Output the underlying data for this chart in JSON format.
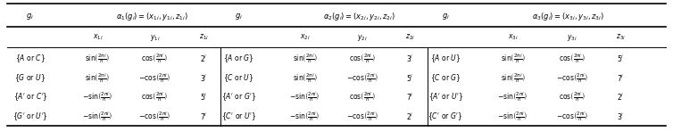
{
  "figsize": [
    7.54,
    1.48
  ],
  "dpi": 100,
  "header_row": [
    "g_i",
    "\\alpha_1(g_i) = (x_{1i}, y_{1i}, z_{1i})",
    "g_i",
    "\\alpha_2(g_i) = (x_{2i}, y_{2i}, z_{2i})",
    "g_i",
    "\\alpha_3(g_i) = (x_{3i}, y_{3i}, z_{3i})"
  ],
  "subheader": [
    "",
    "x_{1i}",
    "y_{1i}",
    "z_{1i}",
    "",
    "x_{2i}",
    "y_{2i}",
    "z_{2i}",
    "",
    "x_{3i}",
    "y_{3i}",
    "z_{3i}"
  ],
  "rows": [
    [
      "\\{A\\,\\mathrm{or}\\,C\\}",
      "\\sin\\!\\left(\\frac{2\\pi i}{n}\\right)",
      "\\cos\\!\\left(\\frac{2\\pi i}{n}\\right)",
      "2^i",
      "\\{A\\,\\mathrm{or}\\,G\\}",
      "\\sin\\!\\left(\\frac{2\\pi i}{n}\\right)",
      "\\cos\\!\\left(\\frac{2\\pi i}{n}\\right)",
      "3^i",
      "\\{A\\,\\mathrm{or}\\,U\\}",
      "\\sin\\!\\left(\\frac{2\\pi i}{n}\\right)",
      "\\cos\\!\\left(\\frac{2\\pi i}{n}\\right)",
      "5^i"
    ],
    [
      "\\{G\\,\\mathrm{or}\\,U\\}",
      "\\sin\\!\\left(\\frac{2\\pi i}{n}\\right)",
      "-\\cos\\!\\left(\\frac{2\\pi i}{n}\\right)",
      "3^i",
      "\\{C\\,\\mathrm{or}\\,U\\}",
      "\\sin\\!\\left(\\frac{2\\pi i}{n}\\right)",
      "-\\cos\\!\\left(\\frac{2\\pi i}{n}\\right)",
      "5^i",
      "\\{C\\,\\mathrm{or}\\,G\\}",
      "\\sin\\!\\left(\\frac{2\\pi i}{n}\\right)",
      "-\\cos\\!\\left(\\frac{2\\pi i}{n}\\right)",
      "7^i"
    ],
    [
      "\\{A'\\,\\mathrm{or}\\,C'\\}",
      "-\\sin\\!\\left(\\frac{2\\pi i}{n}\\right)",
      "\\cos\\!\\left(\\frac{2\\pi i}{n}\\right)",
      "5^i",
      "\\{A'\\,\\mathrm{or}\\,G'\\}",
      "-\\sin\\!\\left(\\frac{2\\pi i}{n}\\right)",
      "\\cos\\!\\left(\\frac{2\\pi i}{n}\\right)",
      "7^i",
      "\\{A'\\,\\mathrm{or}\\,U'\\}",
      "-\\sin\\!\\left(\\frac{2\\pi i}{n}\\right)",
      "\\cos\\!\\left(\\frac{2\\pi i}{n}\\right)",
      "2^i"
    ],
    [
      "\\{G'\\,\\mathrm{or}\\,U'\\}",
      "-\\sin\\!\\left(\\frac{2\\pi i}{n}\\right)",
      "-\\cos\\!\\left(\\frac{2\\pi i}{n}\\right)",
      "7^i",
      "\\{C'\\,\\mathrm{or}\\,U'\\}",
      "-\\sin\\!\\left(\\frac{2\\pi i}{n}\\right)",
      "-\\cos\\!\\left(\\frac{2\\pi i}{n}\\right)",
      "2^i",
      "\\{C'\\,\\mathrm{or}\\,G'\\}",
      "-\\sin\\!\\left(\\frac{2\\pi i}{n}\\right)",
      "-\\cos\\!\\left(\\frac{2\\pi i}{n}\\right)",
      "3^i"
    ]
  ],
  "bg_color": "#ffffff",
  "text_color": "#000000",
  "fontsize": 5.5,
  "header_fontsize": 6.0
}
